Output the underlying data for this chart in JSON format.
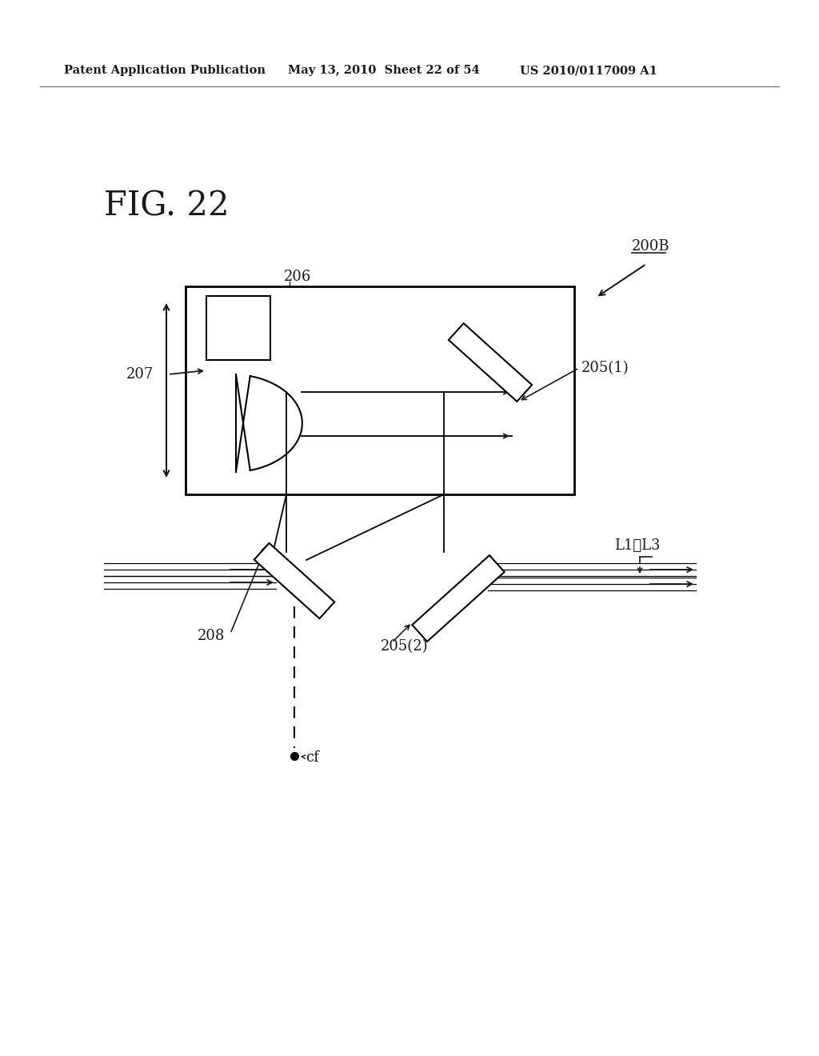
{
  "fig_label": "FIG. 22",
  "header_left": "Patent Application Publication",
  "header_mid": "May 13, 2010  Sheet 22 of 54",
  "header_right": "US 2010/0117009 A1",
  "bg_color": "#ffffff",
  "text_color": "#1a1a1a",
  "label_200B": "200B",
  "label_206": "206",
  "label_207": "207",
  "label_205_1": "205(1)",
  "label_205_2": "205(2)",
  "label_208": "208",
  "label_cf": "cf",
  "label_L1L3": "L1、L3"
}
